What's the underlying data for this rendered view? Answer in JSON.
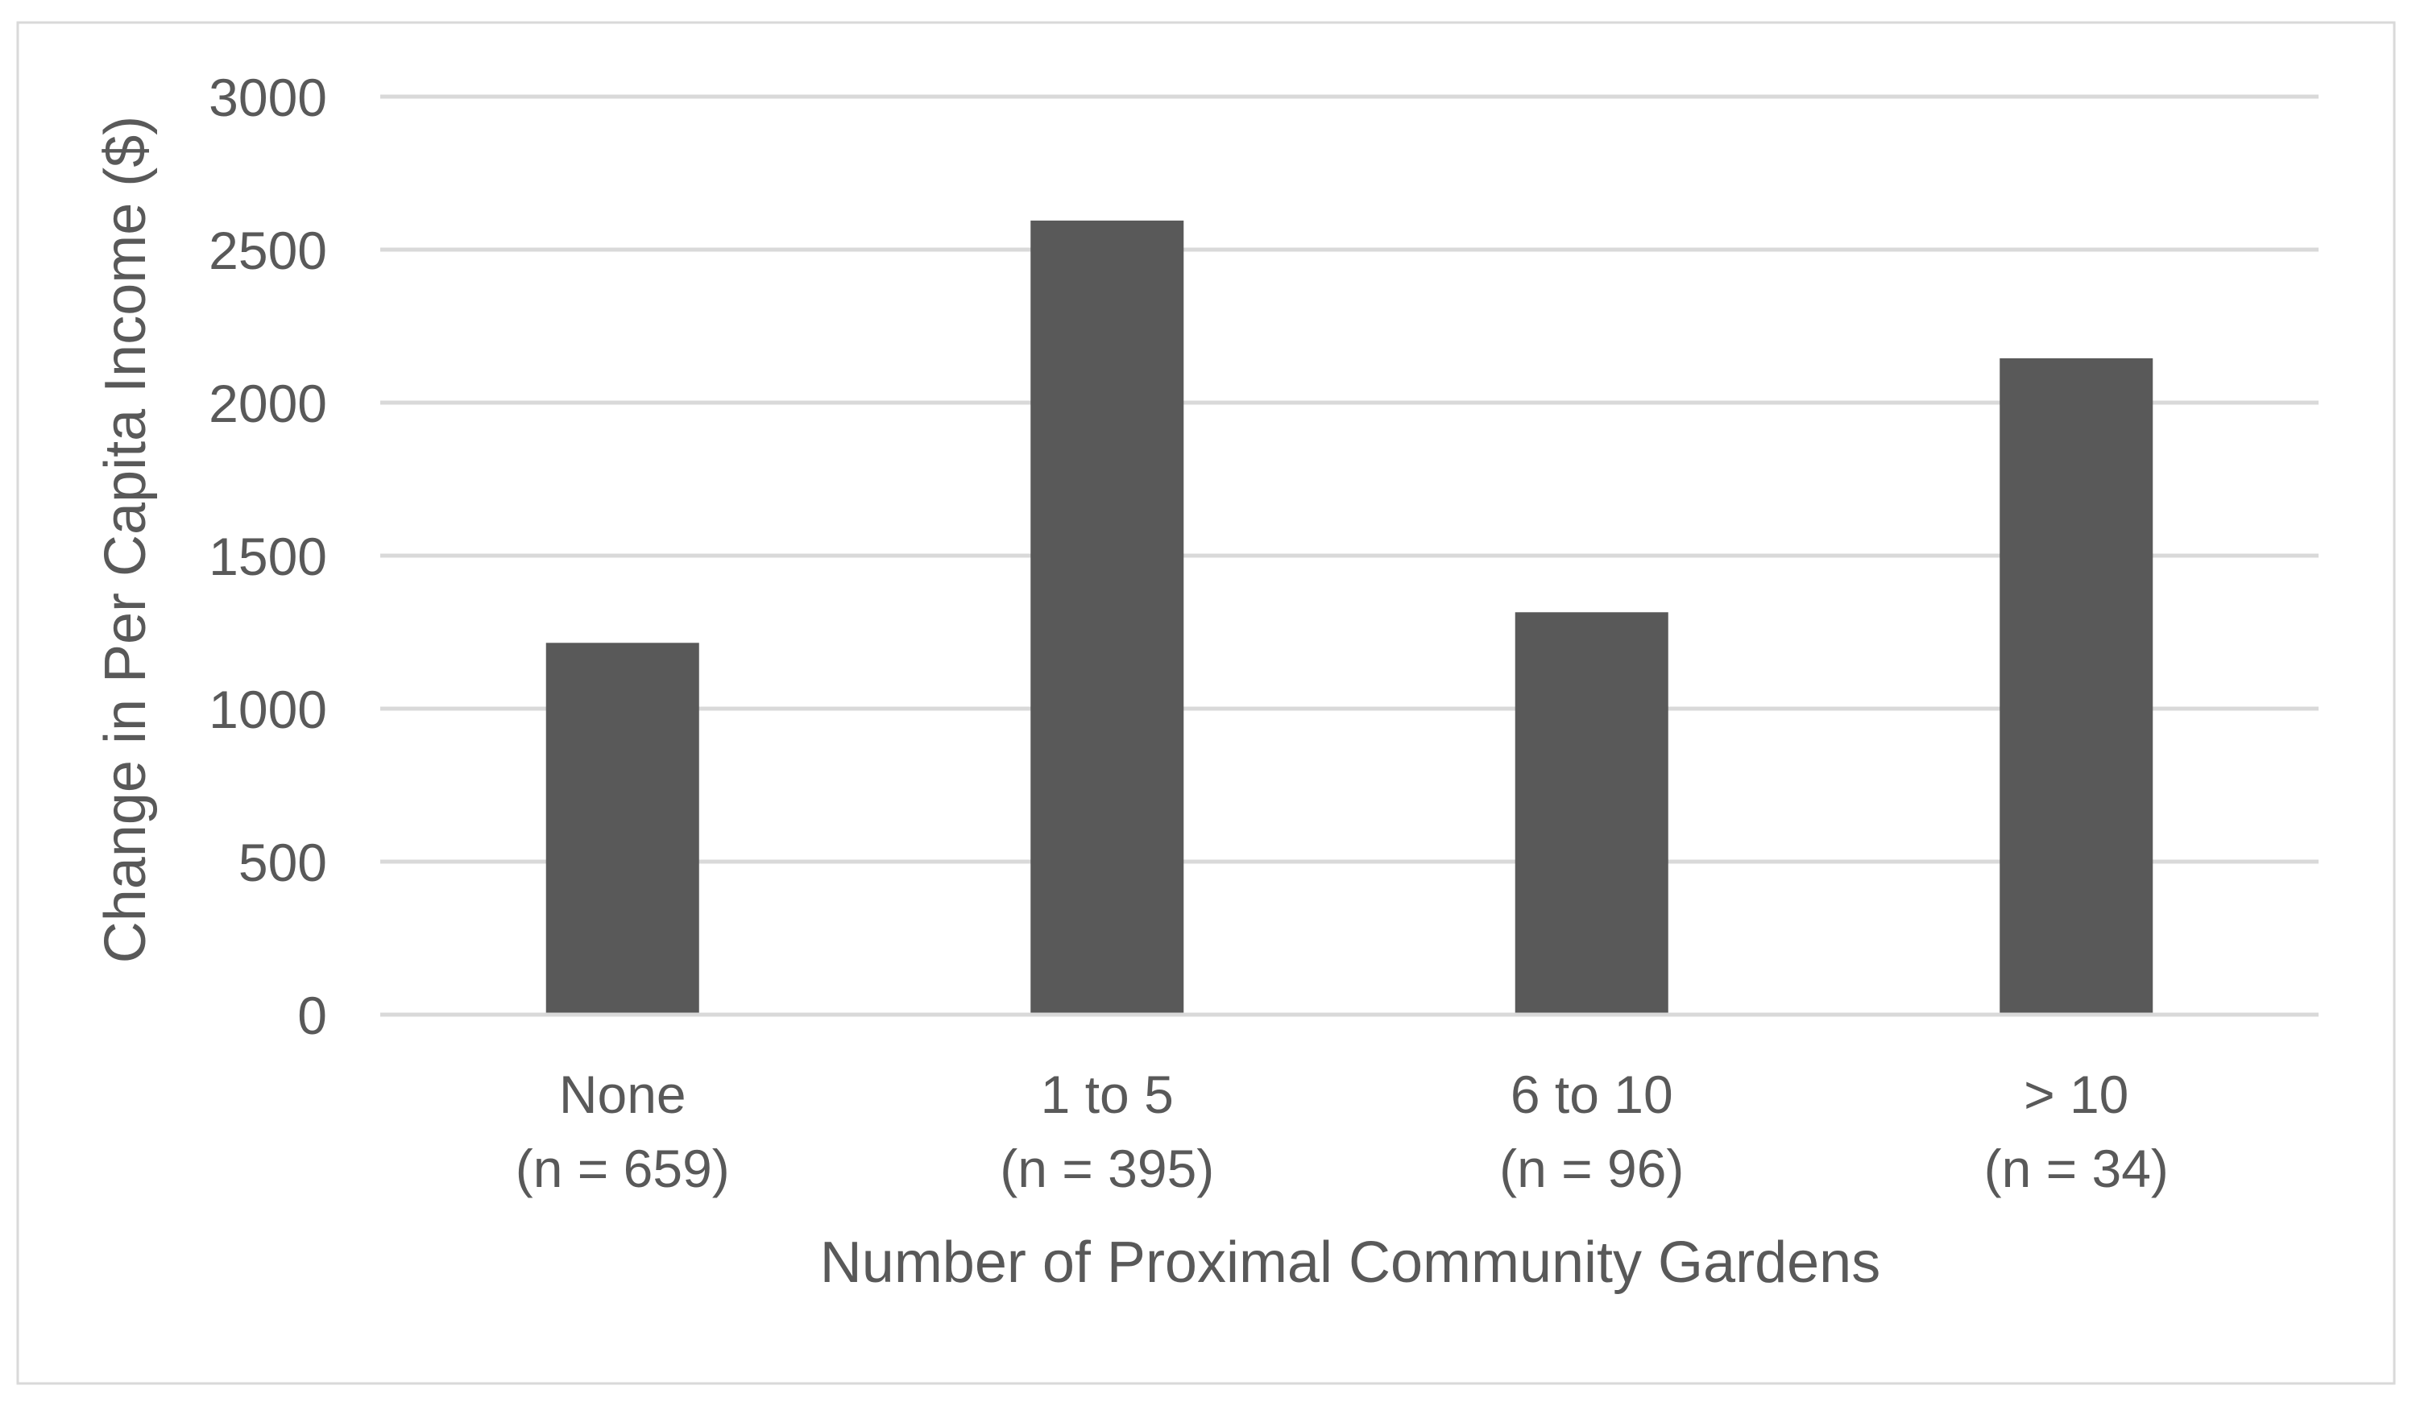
{
  "chart_data": {
    "type": "bar",
    "title": "",
    "xlabel": "Number of Proximal Community Gardens",
    "ylabel": "Change in Per Capita Income ($)",
    "categories": [
      [
        "None",
        "(n = 659)"
      ],
      [
        "1 to 5",
        "(n = 395)"
      ],
      [
        "6 to 10",
        "(n = 96)"
      ],
      [
        "> 10",
        "(n = 34)"
      ]
    ],
    "values": [
      1215,
      2595,
      1315,
      2145
    ],
    "ylim": [
      0,
      3000
    ],
    "yticks": [
      0,
      500,
      1000,
      1500,
      2000,
      2500,
      3000
    ],
    "grid": true,
    "legend": "none"
  },
  "colors": {
    "bar": "#595959",
    "grid": "#d9d9d9",
    "text": "#595959",
    "border": "#d9d9d9"
  }
}
